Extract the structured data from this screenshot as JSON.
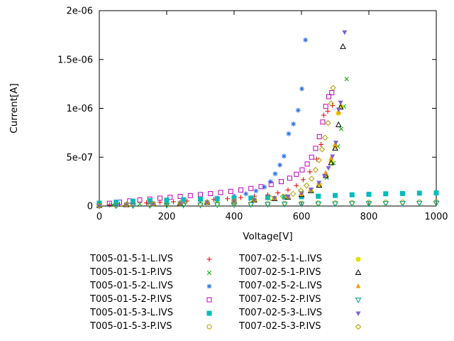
{
  "chart_data": {
    "type": "scatter",
    "title": "",
    "xlabel": "Voltage[V]",
    "ylabel": "Current[A]",
    "xlim": [
      0,
      1000
    ],
    "ylim": [
      0,
      2e-06
    ],
    "xticks": [
      0,
      200,
      400,
      600,
      800,
      1000
    ],
    "yticks": [
      0,
      5e-07,
      1e-06,
      1.5e-06,
      2e-06
    ],
    "ytick_labels": [
      "0",
      "5e-07",
      "1e-06",
      "1.5e-06",
      "2e-06"
    ],
    "grid": false,
    "legend_position": "below-plot-two-columns",
    "background_color": "#ffffff",
    "axis_color": "#000000",
    "series": [
      {
        "name": "T005-01-5-1-L.IVS",
        "marker": "plus",
        "color": "#e00000",
        "points": [
          [
            0,
            5e-09
          ],
          [
            30,
            1.2e-08
          ],
          [
            60,
            1.8e-08
          ],
          [
            100,
            2.6e-08
          ],
          [
            140,
            3.2e-08
          ],
          [
            180,
            3.8e-08
          ],
          [
            220,
            4.4e-08
          ],
          [
            260,
            5.1e-08
          ],
          [
            300,
            5.8e-08
          ],
          [
            340,
            6.6e-08
          ],
          [
            380,
            7.5e-08
          ],
          [
            420,
            8.6e-08
          ],
          [
            460,
            1e-07
          ],
          [
            500,
            1.15e-07
          ],
          [
            530,
            1.35e-07
          ],
          [
            560,
            1.65e-07
          ],
          [
            585,
            2.1e-07
          ],
          [
            605,
            2.7e-07
          ],
          [
            625,
            3.5e-07
          ],
          [
            645,
            4.8e-07
          ],
          [
            658,
            6.3e-07
          ],
          [
            666,
            9.3e-07
          ],
          [
            678,
            9.7e-07
          ],
          [
            692,
            1.03e-06
          ]
        ]
      },
      {
        "name": "T005-01-5-1-P.IVS",
        "marker": "cross",
        "color": "#00a800",
        "points": [
          [
            0,
            4e-09
          ],
          [
            40,
            1.1e-08
          ],
          [
            80,
            1.7e-08
          ],
          [
            120,
            2.2e-08
          ],
          [
            160,
            2.7e-08
          ],
          [
            200,
            3.2e-08
          ],
          [
            250,
            3.8e-08
          ],
          [
            300,
            4.5e-08
          ],
          [
            350,
            5.3e-08
          ],
          [
            400,
            6.2e-08
          ],
          [
            450,
            7.3e-08
          ],
          [
            500,
            8.6e-08
          ],
          [
            550,
            1.05e-07
          ],
          [
            600,
            1.35e-07
          ],
          [
            630,
            1.65e-07
          ],
          [
            655,
            2.1e-07
          ],
          [
            675,
            2.9e-07
          ],
          [
            695,
            4.4e-07
          ],
          [
            708,
            6.1e-07
          ],
          [
            718,
            7.9e-07
          ],
          [
            726,
            1.02e-06
          ],
          [
            734,
            1.3e-06
          ]
        ]
      },
      {
        "name": "T005-01-5-2-L.IVS",
        "marker": "asterisk",
        "color": "#2b6fdf",
        "points": [
          [
            0,
            8e-09
          ],
          [
            50,
            2e-08
          ],
          [
            100,
            3e-08
          ],
          [
            150,
            3.8e-08
          ],
          [
            200,
            4.6e-08
          ],
          [
            250,
            5.6e-08
          ],
          [
            300,
            6.8e-08
          ],
          [
            350,
            8.2e-08
          ],
          [
            400,
            1.02e-07
          ],
          [
            435,
            1.25e-07
          ],
          [
            465,
            1.55e-07
          ],
          [
            490,
            1.95e-07
          ],
          [
            508,
            2.5e-07
          ],
          [
            522,
            3.3e-07
          ],
          [
            536,
            4.2e-07
          ],
          [
            548,
            5.1e-07
          ],
          [
            562,
            7.4e-07
          ],
          [
            576,
            8.4e-07
          ],
          [
            590,
            9.8e-07
          ],
          [
            601,
            1.2e-06
          ],
          [
            612,
            1.7e-06
          ]
        ]
      },
      {
        "name": "T005-01-5-2-P.IVS",
        "marker": "square-open",
        "color": "#bb00bb",
        "points": [
          [
            0,
            1.5e-08
          ],
          [
            30,
            2.8e-08
          ],
          [
            60,
            4e-08
          ],
          [
            90,
            5.2e-08
          ],
          [
            120,
            6.2e-08
          ],
          [
            150,
            7.1e-08
          ],
          [
            180,
            8e-08
          ],
          [
            210,
            8.9e-08
          ],
          [
            240,
            9.8e-08
          ],
          [
            270,
            1.07e-07
          ],
          [
            300,
            1.17e-07
          ],
          [
            330,
            1.27e-07
          ],
          [
            360,
            1.38e-07
          ],
          [
            390,
            1.5e-07
          ],
          [
            420,
            1.64e-07
          ],
          [
            450,
            1.8e-07
          ],
          [
            480,
            1.98e-07
          ],
          [
            510,
            2.2e-07
          ],
          [
            540,
            2.5e-07
          ],
          [
            565,
            2.85e-07
          ],
          [
            585,
            3.25e-07
          ],
          [
            602,
            3.7e-07
          ],
          [
            617,
            4.3e-07
          ],
          [
            630,
            5e-07
          ],
          [
            642,
            5.9e-07
          ],
          [
            653,
            7.1e-07
          ],
          [
            663,
            8.6e-07
          ],
          [
            672,
            1.02e-06
          ],
          [
            681,
            1.12e-06
          ],
          [
            690,
            1.16e-06
          ]
        ]
      },
      {
        "name": "T005-01-5-3-L.IVS",
        "marker": "square-filled",
        "color": "#00bcbc",
        "points": [
          [
            0,
            3e-08
          ],
          [
            50,
            4e-08
          ],
          [
            100,
            5e-08
          ],
          [
            150,
            5.5e-08
          ],
          [
            200,
            6e-08
          ],
          [
            250,
            6.5e-08
          ],
          [
            300,
            7e-08
          ],
          [
            350,
            7.4e-08
          ],
          [
            400,
            7.8e-08
          ],
          [
            450,
            8.2e-08
          ],
          [
            500,
            8.6e-08
          ],
          [
            550,
            9e-08
          ],
          [
            600,
            9.5e-08
          ],
          [
            650,
            1e-07
          ],
          [
            700,
            1.08e-07
          ],
          [
            750,
            1.15e-07
          ],
          [
            800,
            1.2e-07
          ],
          [
            850,
            1.25e-07
          ],
          [
            900,
            1.28e-07
          ],
          [
            950,
            1.32e-07
          ],
          [
            1000,
            1.35e-07
          ]
        ]
      },
      {
        "name": "T005-01-5-3-P.IVS",
        "marker": "circle-open",
        "color": "#b0a000",
        "points": [
          [
            0,
            3e-09
          ],
          [
            50,
            6e-09
          ],
          [
            100,
            9e-09
          ],
          [
            150,
            1.1e-08
          ],
          [
            200,
            1.3e-08
          ],
          [
            250,
            1.5e-08
          ],
          [
            300,
            1.7e-08
          ],
          [
            350,
            1.9e-08
          ],
          [
            400,
            2.1e-08
          ],
          [
            450,
            2.3e-08
          ],
          [
            500,
            2.5e-08
          ],
          [
            550,
            2.7e-08
          ],
          [
            600,
            2.9e-08
          ],
          [
            650,
            3.1e-08
          ],
          [
            700,
            3.3e-08
          ],
          [
            750,
            3.5e-08
          ],
          [
            800,
            3.7e-08
          ],
          [
            850,
            3.8e-08
          ],
          [
            900,
            4e-08
          ],
          [
            950,
            4.1e-08
          ],
          [
            1000,
            4.3e-08
          ]
        ]
      },
      {
        "name": "T007-02-5-1-L.IVS",
        "marker": "circle-filled",
        "color": "#e2e200",
        "points": [
          [
            0,
            5e-09
          ],
          [
            80,
            1.3e-08
          ],
          [
            160,
            2.1e-08
          ],
          [
            240,
            2.9e-08
          ],
          [
            320,
            3.8e-08
          ],
          [
            400,
            5e-08
          ],
          [
            460,
            6.2e-08
          ],
          [
            520,
            7.8e-08
          ],
          [
            560,
            9.2e-08
          ],
          [
            600,
            1.2e-07
          ],
          [
            628,
            1.6e-07
          ],
          [
            652,
            2.2e-07
          ],
          [
            672,
            3.2e-07
          ],
          [
            688,
            4.6e-07
          ],
          [
            700,
            6.1e-07
          ],
          [
            709,
            9.5e-07
          ],
          [
            718,
            1.02e-06
          ]
        ]
      },
      {
        "name": "T007-02-5-1-P.IVS",
        "marker": "triangle-open",
        "color": "#000000",
        "points": [
          [
            0,
            4e-09
          ],
          [
            80,
            1.1e-08
          ],
          [
            160,
            1.9e-08
          ],
          [
            240,
            2.7e-08
          ],
          [
            320,
            3.6e-08
          ],
          [
            400,
            4.7e-08
          ],
          [
            460,
            5.9e-08
          ],
          [
            520,
            7.4e-08
          ],
          [
            560,
            8.8e-08
          ],
          [
            600,
            1.15e-07
          ],
          [
            628,
            1.55e-07
          ],
          [
            652,
            2.1e-07
          ],
          [
            672,
            3.1e-07
          ],
          [
            688,
            4.4e-07
          ],
          [
            700,
            5.9e-07
          ],
          [
            710,
            8.3e-07
          ],
          [
            716,
            1.01e-06
          ],
          [
            723,
            1.63e-06
          ]
        ]
      },
      {
        "name": "T007-02-5-2-L.IVS",
        "marker": "triangle-filled",
        "color": "#f0a000",
        "points": [
          [
            0,
            6e-09
          ],
          [
            80,
            1.4e-08
          ],
          [
            160,
            2.2e-08
          ],
          [
            240,
            3e-08
          ],
          [
            320,
            4e-08
          ],
          [
            400,
            5.2e-08
          ],
          [
            460,
            6.5e-08
          ],
          [
            520,
            8e-08
          ],
          [
            560,
            9.5e-08
          ],
          [
            600,
            1.25e-07
          ],
          [
            628,
            1.65e-07
          ],
          [
            652,
            2.3e-07
          ],
          [
            672,
            3.4e-07
          ],
          [
            688,
            4.9e-07
          ],
          [
            700,
            6.3e-07
          ],
          [
            711,
            9.6e-07
          ]
        ]
      },
      {
        "name": "T007-02-5-2-P.IVS",
        "marker": "triangle-down-open",
        "color": "#00a080",
        "points": [
          [
            0,
            2e-09
          ],
          [
            50,
            4e-09
          ],
          [
            100,
            6e-09
          ],
          [
            150,
            8e-09
          ],
          [
            200,
            9e-09
          ],
          [
            250,
            1.1e-08
          ],
          [
            300,
            1.2e-08
          ],
          [
            350,
            1.4e-08
          ],
          [
            400,
            1.5e-08
          ],
          [
            450,
            1.7e-08
          ],
          [
            500,
            1.8e-08
          ],
          [
            550,
            2e-08
          ],
          [
            600,
            2.1e-08
          ],
          [
            650,
            2.3e-08
          ],
          [
            700,
            2.4e-08
          ],
          [
            750,
            2.6e-08
          ],
          [
            800,
            2.7e-08
          ],
          [
            850,
            2.8e-08
          ],
          [
            900,
            2.9e-08
          ],
          [
            950,
            3e-08
          ],
          [
            1000,
            3.1e-08
          ]
        ]
      },
      {
        "name": "T007-02-5-3-L.IVS",
        "marker": "triangle-down-filled",
        "color": "#8060d0",
        "points": [
          [
            0,
            5e-09
          ],
          [
            80,
            1.3e-08
          ],
          [
            160,
            2.1e-08
          ],
          [
            240,
            3e-08
          ],
          [
            320,
            4e-08
          ],
          [
            400,
            5.2e-08
          ],
          [
            460,
            6.6e-08
          ],
          [
            520,
            8.2e-08
          ],
          [
            560,
            9.8e-08
          ],
          [
            600,
            1.3e-07
          ],
          [
            628,
            1.7e-07
          ],
          [
            652,
            2.4e-07
          ],
          [
            668,
            3.1e-07
          ],
          [
            680,
            3.9e-07
          ],
          [
            692,
            5.1e-07
          ],
          [
            702,
            6.5e-07
          ],
          [
            710,
            9.9e-07
          ],
          [
            716,
            1.06e-06
          ],
          [
            728,
            1.78e-06
          ]
        ]
      },
      {
        "name": "T007-02-5-3-P.IVS",
        "marker": "diamond-open",
        "color": "#b0a000",
        "points": [
          [
            0,
            4e-09
          ],
          [
            80,
            1.2e-08
          ],
          [
            160,
            2e-08
          ],
          [
            240,
            2.8e-08
          ],
          [
            320,
            3.8e-08
          ],
          [
            400,
            5e-08
          ],
          [
            460,
            6.4e-08
          ],
          [
            510,
            8e-08
          ],
          [
            545,
            9.8e-08
          ],
          [
            575,
            1.25e-07
          ],
          [
            598,
            1.6e-07
          ],
          [
            615,
            2.1e-07
          ],
          [
            630,
            2.8e-07
          ],
          [
            642,
            3.7e-07
          ],
          [
            652,
            4.7e-07
          ],
          [
            661,
            5.8e-07
          ],
          [
            670,
            7e-07
          ],
          [
            679,
            8.5e-07
          ],
          [
            688,
            1.05e-06
          ],
          [
            694,
            1.21e-06
          ]
        ]
      }
    ]
  }
}
